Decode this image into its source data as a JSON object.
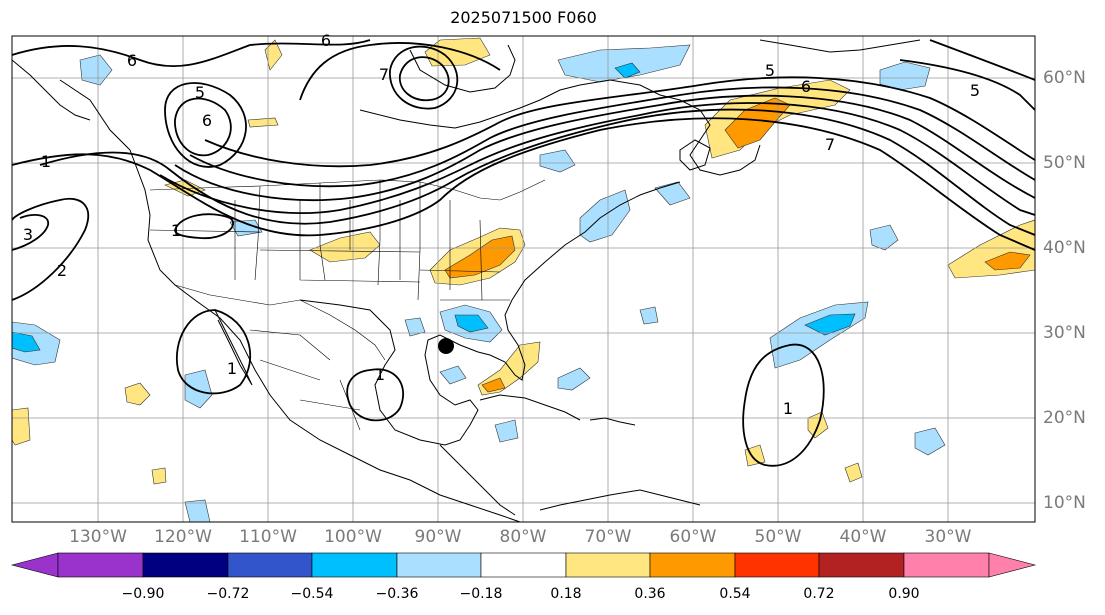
{
  "title": "2025071500 F060",
  "longitude_labels": [
    "130°W",
    "120°W",
    "110°W",
    "100°W",
    "90°W",
    "80°W",
    "70°W",
    "60°W",
    "50°W",
    "40°W",
    "30°W"
  ],
  "latitude_labels": [
    "60°N",
    "50°N",
    "40°N",
    "30°N",
    "20°N",
    "10°N"
  ],
  "contour_labels": [
    "1",
    "2",
    "3",
    "5",
    "6",
    "7"
  ],
  "colorbar": {
    "tick_labels": [
      "−0.90",
      "−0.72",
      "−0.54",
      "−0.36",
      "−0.18",
      "0.18",
      "0.36",
      "0.54",
      "0.72",
      "0.90"
    ],
    "colors": [
      "#9933cc",
      "#000080",
      "#3355cc",
      "#00bfff",
      "#aadfff",
      "#ffffff",
      "#ffe680",
      "#ff9900",
      "#ff3300",
      "#b22222",
      "#ff80aa"
    ]
  },
  "shading_colors": {
    "light_yellow": "#ffe680",
    "orange": "#ff9900",
    "light_blue": "#aadfff",
    "blue": "#00bfff"
  },
  "marker": "storm-center-dot"
}
